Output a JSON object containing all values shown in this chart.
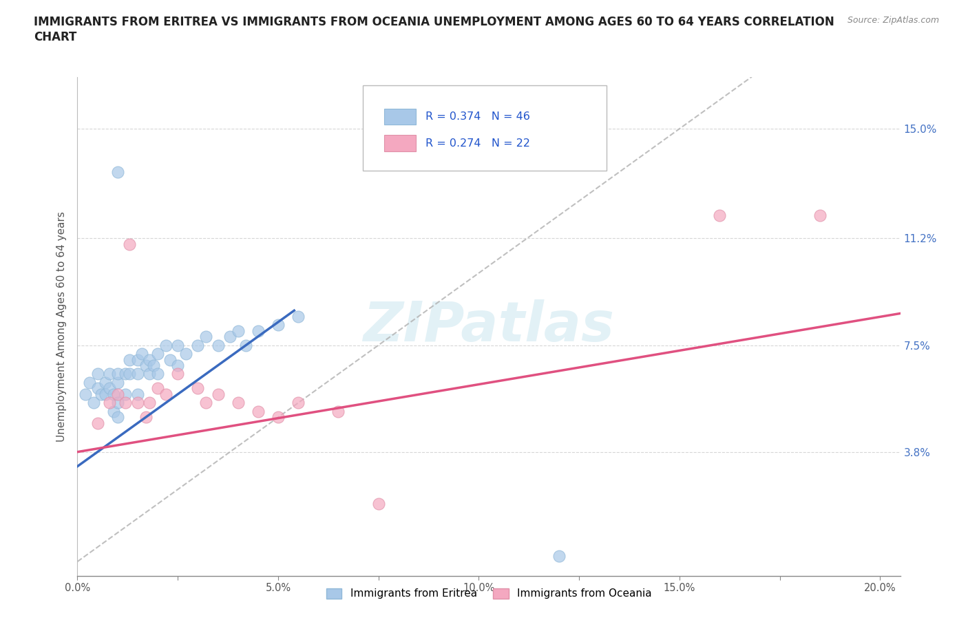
{
  "title_line1": "IMMIGRANTS FROM ERITREA VS IMMIGRANTS FROM OCEANIA UNEMPLOYMENT AMONG AGES 60 TO 64 YEARS CORRELATION",
  "title_line2": "CHART",
  "source_text": "Source: ZipAtlas.com",
  "ylabel": "Unemployment Among Ages 60 to 64 years",
  "xlim": [
    0.0,
    0.205
  ],
  "ylim": [
    -0.005,
    0.168
  ],
  "xtick_vals": [
    0.0,
    0.025,
    0.05,
    0.075,
    0.1,
    0.125,
    0.15,
    0.175,
    0.2
  ],
  "xtick_labels": [
    "0.0%",
    "",
    "5.0%",
    "",
    "10.0%",
    "",
    "15.0%",
    "",
    "20.0%"
  ],
  "ytick_vals": [
    0.038,
    0.075,
    0.112,
    0.15
  ],
  "ytick_labels": [
    "3.8%",
    "7.5%",
    "11.2%",
    "15.0%"
  ],
  "legend_label1": "Immigrants from Eritrea",
  "legend_label2": "Immigrants from Oceania",
  "R1": 0.374,
  "N1": 46,
  "R2": 0.274,
  "N2": 22,
  "color1": "#a8c8e8",
  "color2": "#f4a8c0",
  "line_color1": "#3a6abf",
  "line_color2": "#e05080",
  "watermark_color": "#d0e8f0",
  "eritrea_x": [
    0.002,
    0.003,
    0.004,
    0.005,
    0.005,
    0.006,
    0.007,
    0.007,
    0.008,
    0.008,
    0.009,
    0.009,
    0.01,
    0.01,
    0.01,
    0.01,
    0.012,
    0.012,
    0.013,
    0.013,
    0.015,
    0.015,
    0.015,
    0.016,
    0.017,
    0.018,
    0.018,
    0.019,
    0.02,
    0.02,
    0.022,
    0.023,
    0.025,
    0.025,
    0.027,
    0.03,
    0.032,
    0.035,
    0.038,
    0.04,
    0.042,
    0.045,
    0.05,
    0.055,
    0.01,
    0.12
  ],
  "eritrea_y": [
    0.058,
    0.062,
    0.055,
    0.06,
    0.065,
    0.058,
    0.062,
    0.058,
    0.065,
    0.06,
    0.058,
    0.052,
    0.062,
    0.065,
    0.055,
    0.05,
    0.065,
    0.058,
    0.07,
    0.065,
    0.07,
    0.065,
    0.058,
    0.072,
    0.068,
    0.07,
    0.065,
    0.068,
    0.072,
    0.065,
    0.075,
    0.07,
    0.075,
    0.068,
    0.072,
    0.075,
    0.078,
    0.075,
    0.078,
    0.08,
    0.075,
    0.08,
    0.082,
    0.085,
    0.135,
    0.002
  ],
  "oceania_x": [
    0.005,
    0.008,
    0.01,
    0.012,
    0.013,
    0.015,
    0.017,
    0.018,
    0.02,
    0.022,
    0.025,
    0.03,
    0.032,
    0.035,
    0.04,
    0.045,
    0.05,
    0.055,
    0.065,
    0.075,
    0.16,
    0.185
  ],
  "oceania_y": [
    0.048,
    0.055,
    0.058,
    0.055,
    0.11,
    0.055,
    0.05,
    0.055,
    0.06,
    0.058,
    0.065,
    0.06,
    0.055,
    0.058,
    0.055,
    0.052,
    0.05,
    0.055,
    0.052,
    0.02,
    0.12,
    0.12
  ],
  "eritrea_line_x": [
    0.0,
    0.054
  ],
  "eritrea_line_y": [
    0.033,
    0.087
  ],
  "oceania_line_x": [
    0.0,
    0.205
  ],
  "oceania_line_y": [
    0.038,
    0.086
  ],
  "diag_line_x": [
    0.0,
    0.168
  ],
  "diag_line_y": [
    0.0,
    0.168
  ]
}
